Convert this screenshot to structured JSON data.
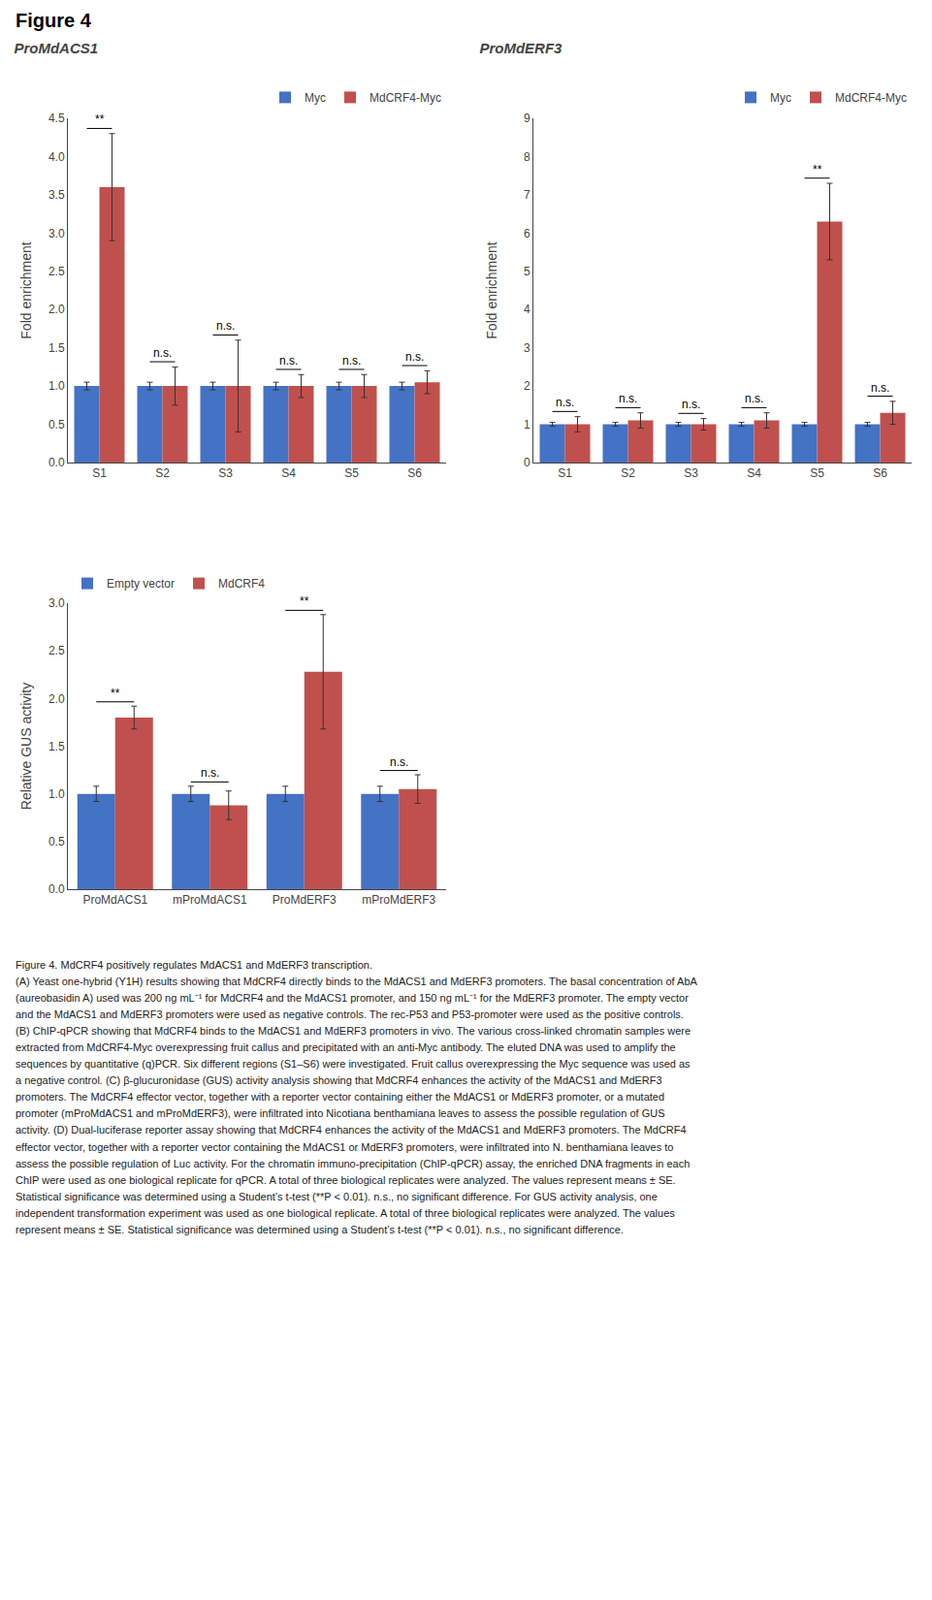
{
  "title": "Figure 4",
  "annotations": [
    "Figure 4. MdCRF4 positively regulates MdACS1 and MdERF3 transcription.\n(A) Yeast one-hybrid (Y1H) results showing that MdCRF4 directly binds to the MdACS1 and MdERF3 promoters. The basal concentration of AbA\n(aureobasidin A) used was 200 ng mL⁻¹ for MdCRF4 and the MdACS1 promoter, and 150 ng mL⁻¹ for the MdERF3 promoter. The empty vector\nand the MdACS1 and MdERF3 promoters were used as negative controls. The rec-P53 and P53-promoter were used as the positive controls.\n(B) ChIP-qPCR showing that MdCRF4 binds to the MdACS1 and MdERF3 promoters in vivo. The various cross-linked chromatin samples were\nextracted from MdCRF4-Myc overexpressing fruit callus and precipitated with an anti-Myc antibody. The eluted DNA was used to amplify the\nsequences by quantitative (q)PCR. Six different regions (S1–S6) were investigated. Fruit callus overexpressing the Myc sequence was used as\na negative control. (C) β-glucuronidase (GUS) activity analysis showing that MdCRF4 enhances the activity of the MdACS1 and MdERF3\npromoters. The MdCRF4 effector vector, together with a reporter vector containing either the MdACS1 or MdERF3 promoter, or a mutated\npromoter (mProMdACS1 and mProMdERF3), were infiltrated into Nicotiana benthamiana leaves to assess the possible regulation of GUS\nactivity. (D) Dual-luciferase reporter assay showing that MdCRF4 enhances the activity of the MdACS1 and MdERF3 promoters. The MdCRF4\neffector vector, together with a reporter vector containing the MdACS1 or MdERF3 promoters, were infiltrated into N. benthamiana leaves to\nassess the possible regulation of Luc activity. For the chromatin immuno-precipitation (ChIP-qPCR) assay, the enriched DNA fragments in each\nChIP were used as one biological replicate for qPCR. A total of three biological replicates were analyzed. The values represent means ± SE.\nStatistical significance was determined using a Student’s t-test (**P < 0.01). n.s., no significant difference. For GUS activity analysis, one\nindependent transformation experiment was used as one biological replicate. A total of three biological replicates were analyzed. The values\nrepresent means ± SE. Statistical significance was determined using a Student’s t-test (**P < 0.01). n.s., no significant difference."
  ],
  "chart_data": [
    {
      "type": "bar",
      "title": "ProMdACS1",
      "categories": [
        "S1",
        "S2",
        "S3",
        "S4",
        "S5",
        "S6"
      ],
      "series": [
        {
          "name": "Myc",
          "color": "#4472C4",
          "values": [
            1.0,
            1.0,
            1.0,
            1.0,
            1.0,
            1.0
          ],
          "errors": [
            0.05,
            0.05,
            0.05,
            0.05,
            0.05,
            0.05
          ]
        },
        {
          "name": "MdCRF4-Myc",
          "color": "#C0504D",
          "values": [
            3.6,
            1.0,
            1.0,
            1.0,
            1.0,
            1.05
          ],
          "errors": [
            0.7,
            0.25,
            0.6,
            0.15,
            0.15,
            0.15
          ]
        }
      ],
      "ylabel": "Fold enrichment",
      "ylim": [
        0,
        4.5
      ],
      "yticks": [
        {
          "value": 0,
          "label": "0.0"
        },
        0.5,
        {
          "value": 1.0,
          "label": "1.0"
        },
        1.5,
        {
          "value": 2.0,
          "label": "2.0"
        },
        2.5,
        {
          "value": 3.0,
          "label": "3.0"
        },
        3.5,
        {
          "value": 4.0,
          "label": "4.0"
        },
        4.5
      ],
      "annotations": [
        {
          "x": "S1",
          "text": "**"
        },
        {
          "x": "S2",
          "text": "n.s."
        },
        {
          "x": "S3",
          "text": "n.s."
        },
        {
          "x": "S4",
          "text": "n.s."
        },
        {
          "x": "S5",
          "text": "n.s."
        },
        {
          "x": "S6",
          "text": "n.s."
        }
      ],
      "legend": "upper right",
      "grid": false
    },
    {
      "type": "bar",
      "title": "ProMdERF3",
      "categories": [
        "S1",
        "S2",
        "S3",
        "S4",
        "S5",
        "S6"
      ],
      "series": [
        {
          "name": "Myc",
          "color": "#4472C4",
          "values": [
            1.0,
            1.0,
            1.0,
            1.0,
            1.0,
            1.0
          ],
          "errors": [
            0.05,
            0.05,
            0.05,
            0.05,
            0.05,
            0.05
          ]
        },
        {
          "name": "MdCRF4-Myc",
          "color": "#C0504D",
          "values": [
            1.0,
            1.1,
            1.0,
            1.1,
            6.3,
            1.3
          ],
          "errors": [
            0.2,
            0.2,
            0.15,
            0.2,
            1.0,
            0.3
          ]
        }
      ],
      "ylabel": "Fold enrichment",
      "ylim": [
        0,
        9
      ],
      "yticks": [
        0,
        1,
        2,
        3,
        4,
        5,
        6,
        7,
        8,
        9
      ],
      "annotations": [
        {
          "x": "S1",
          "text": "n.s."
        },
        {
          "x": "S2",
          "text": "n.s."
        },
        {
          "x": "S3",
          "text": "n.s."
        },
        {
          "x": "S4",
          "text": "n.s."
        },
        {
          "x": "S5",
          "text": "**"
        },
        {
          "x": "S6",
          "text": "n.s."
        }
      ],
      "legend": "upper right",
      "grid": false
    },
    {
      "type": "bar",
      "categories": [
        "ProMdACS1",
        "mProMdACS1",
        "ProMdERF3",
        "mProMdERF3"
      ],
      "series": [
        {
          "name": "Empty vector",
          "color": "#4472C4",
          "values": [
            1.0,
            1.0,
            1.0,
            1.0
          ],
          "errors": [
            0.08,
            0.08,
            0.08,
            0.08
          ]
        },
        {
          "name": "MdCRF4",
          "color": "#C0504D",
          "values": [
            1.8,
            0.88,
            2.28,
            1.05
          ],
          "errors": [
            0.12,
            0.15,
            0.6,
            0.15
          ]
        }
      ],
      "ylabel": "Relative GUS activity",
      "ylim": [
        0,
        3.0
      ],
      "yticks": [
        {
          "value": 0,
          "label": "0.0"
        },
        0.5,
        {
          "value": 1.0,
          "label": "1.0"
        },
        1.5,
        {
          "value": 2.0,
          "label": "2.0"
        },
        2.5,
        {
          "value": 3.0,
          "label": "3.0"
        }
      ],
      "annotations": [
        {
          "x": "ProMdACS1",
          "text": "**"
        },
        {
          "x": "mProMdACS1",
          "text": "n.s."
        },
        {
          "x": "ProMdERF3",
          "text": "**"
        },
        {
          "x": "mProMdERF3",
          "text": "n.s."
        }
      ],
      "legend": "upper left",
      "grid": false
    }
  ]
}
